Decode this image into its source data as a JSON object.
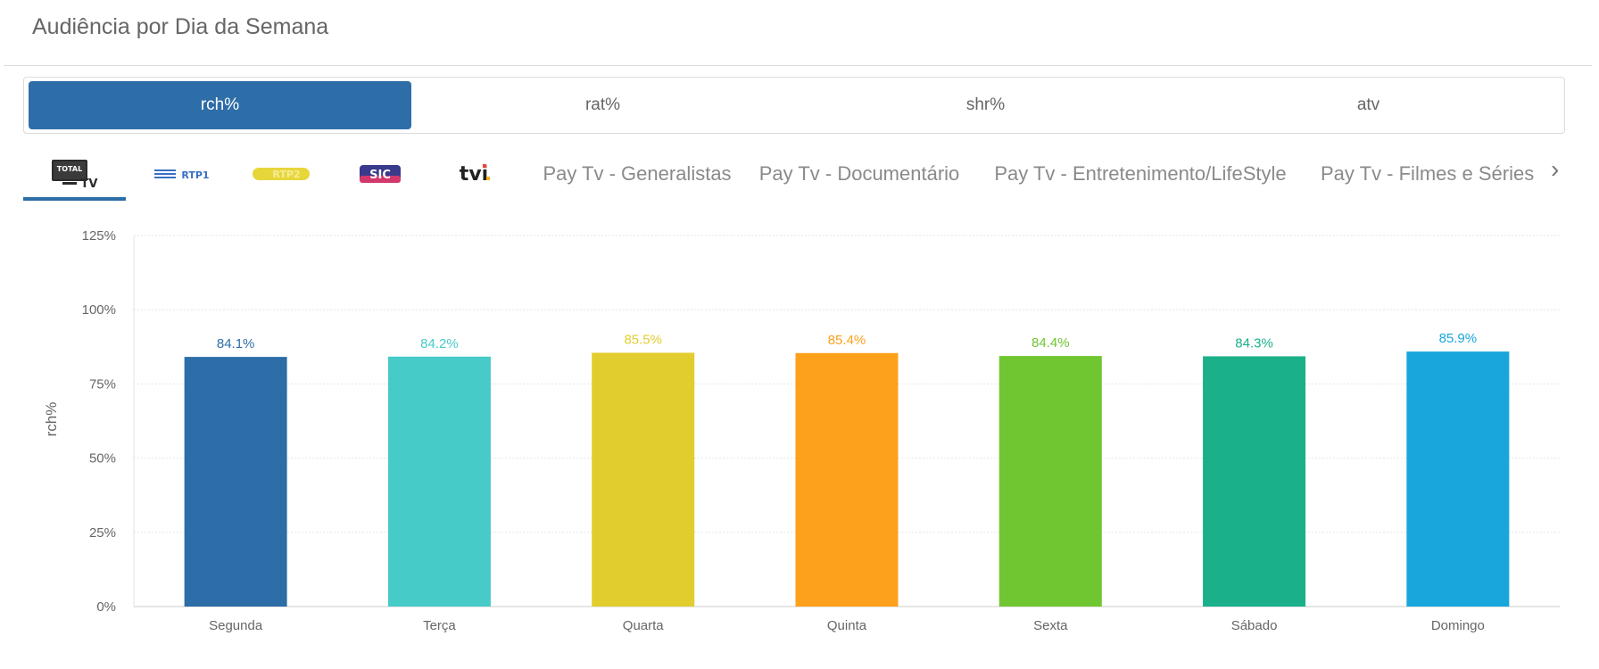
{
  "header": {
    "title": "Audiência por Dia da Semana"
  },
  "metric_tabs": [
    {
      "label": "rch%",
      "active": true
    },
    {
      "label": "rat%",
      "active": false
    },
    {
      "label": "shr%",
      "active": false
    },
    {
      "label": "atv",
      "active": false
    }
  ],
  "channel_tabs": {
    "logos": [
      {
        "name": "total-tv-logo",
        "text_top": "TOTAL",
        "text_bottom": "TV",
        "active": true
      },
      {
        "name": "rtp1-logo",
        "text": "RTP1",
        "color": "#3a6fc4"
      },
      {
        "name": "rtp2-logo",
        "text": "RTP2",
        "color": "#e7d63a"
      },
      {
        "name": "sic-logo",
        "text": "SIC",
        "color": "#3a3a8c"
      },
      {
        "name": "tvi-logo",
        "text": "tvi",
        "color": "#222222"
      }
    ],
    "text_tabs": [
      "Pay Tv - Generalistas",
      "Pay Tv - Documentário",
      "Pay Tv - Entretenimento/LifeStyle",
      "Pay Tv - Filmes e Séries"
    ],
    "next_icon": "chevron-right-icon"
  },
  "chart_data": {
    "type": "bar",
    "categories": [
      "Segunda",
      "Terça",
      "Quarta",
      "Quinta",
      "Sexta",
      "Sábado",
      "Domingo"
    ],
    "values": [
      84.1,
      84.2,
      85.5,
      85.4,
      84.4,
      84.3,
      85.9
    ],
    "value_labels": [
      "84.1%",
      "84.2%",
      "85.5%",
      "85.4%",
      "84.4%",
      "84.3%",
      "85.9%"
    ],
    "colors": [
      "#2d6da8",
      "#47cbc9",
      "#e2cd2e",
      "#fda01b",
      "#6fc631",
      "#1ab08a",
      "#19a6dc"
    ],
    "ylabel": "rch%",
    "ylim": [
      0,
      125
    ],
    "yticks": [
      0,
      25,
      50,
      75,
      100,
      125
    ],
    "ytick_labels": [
      "0%",
      "25%",
      "50%",
      "75%",
      "100%",
      "125%"
    ],
    "grid": true,
    "legend": "none"
  }
}
